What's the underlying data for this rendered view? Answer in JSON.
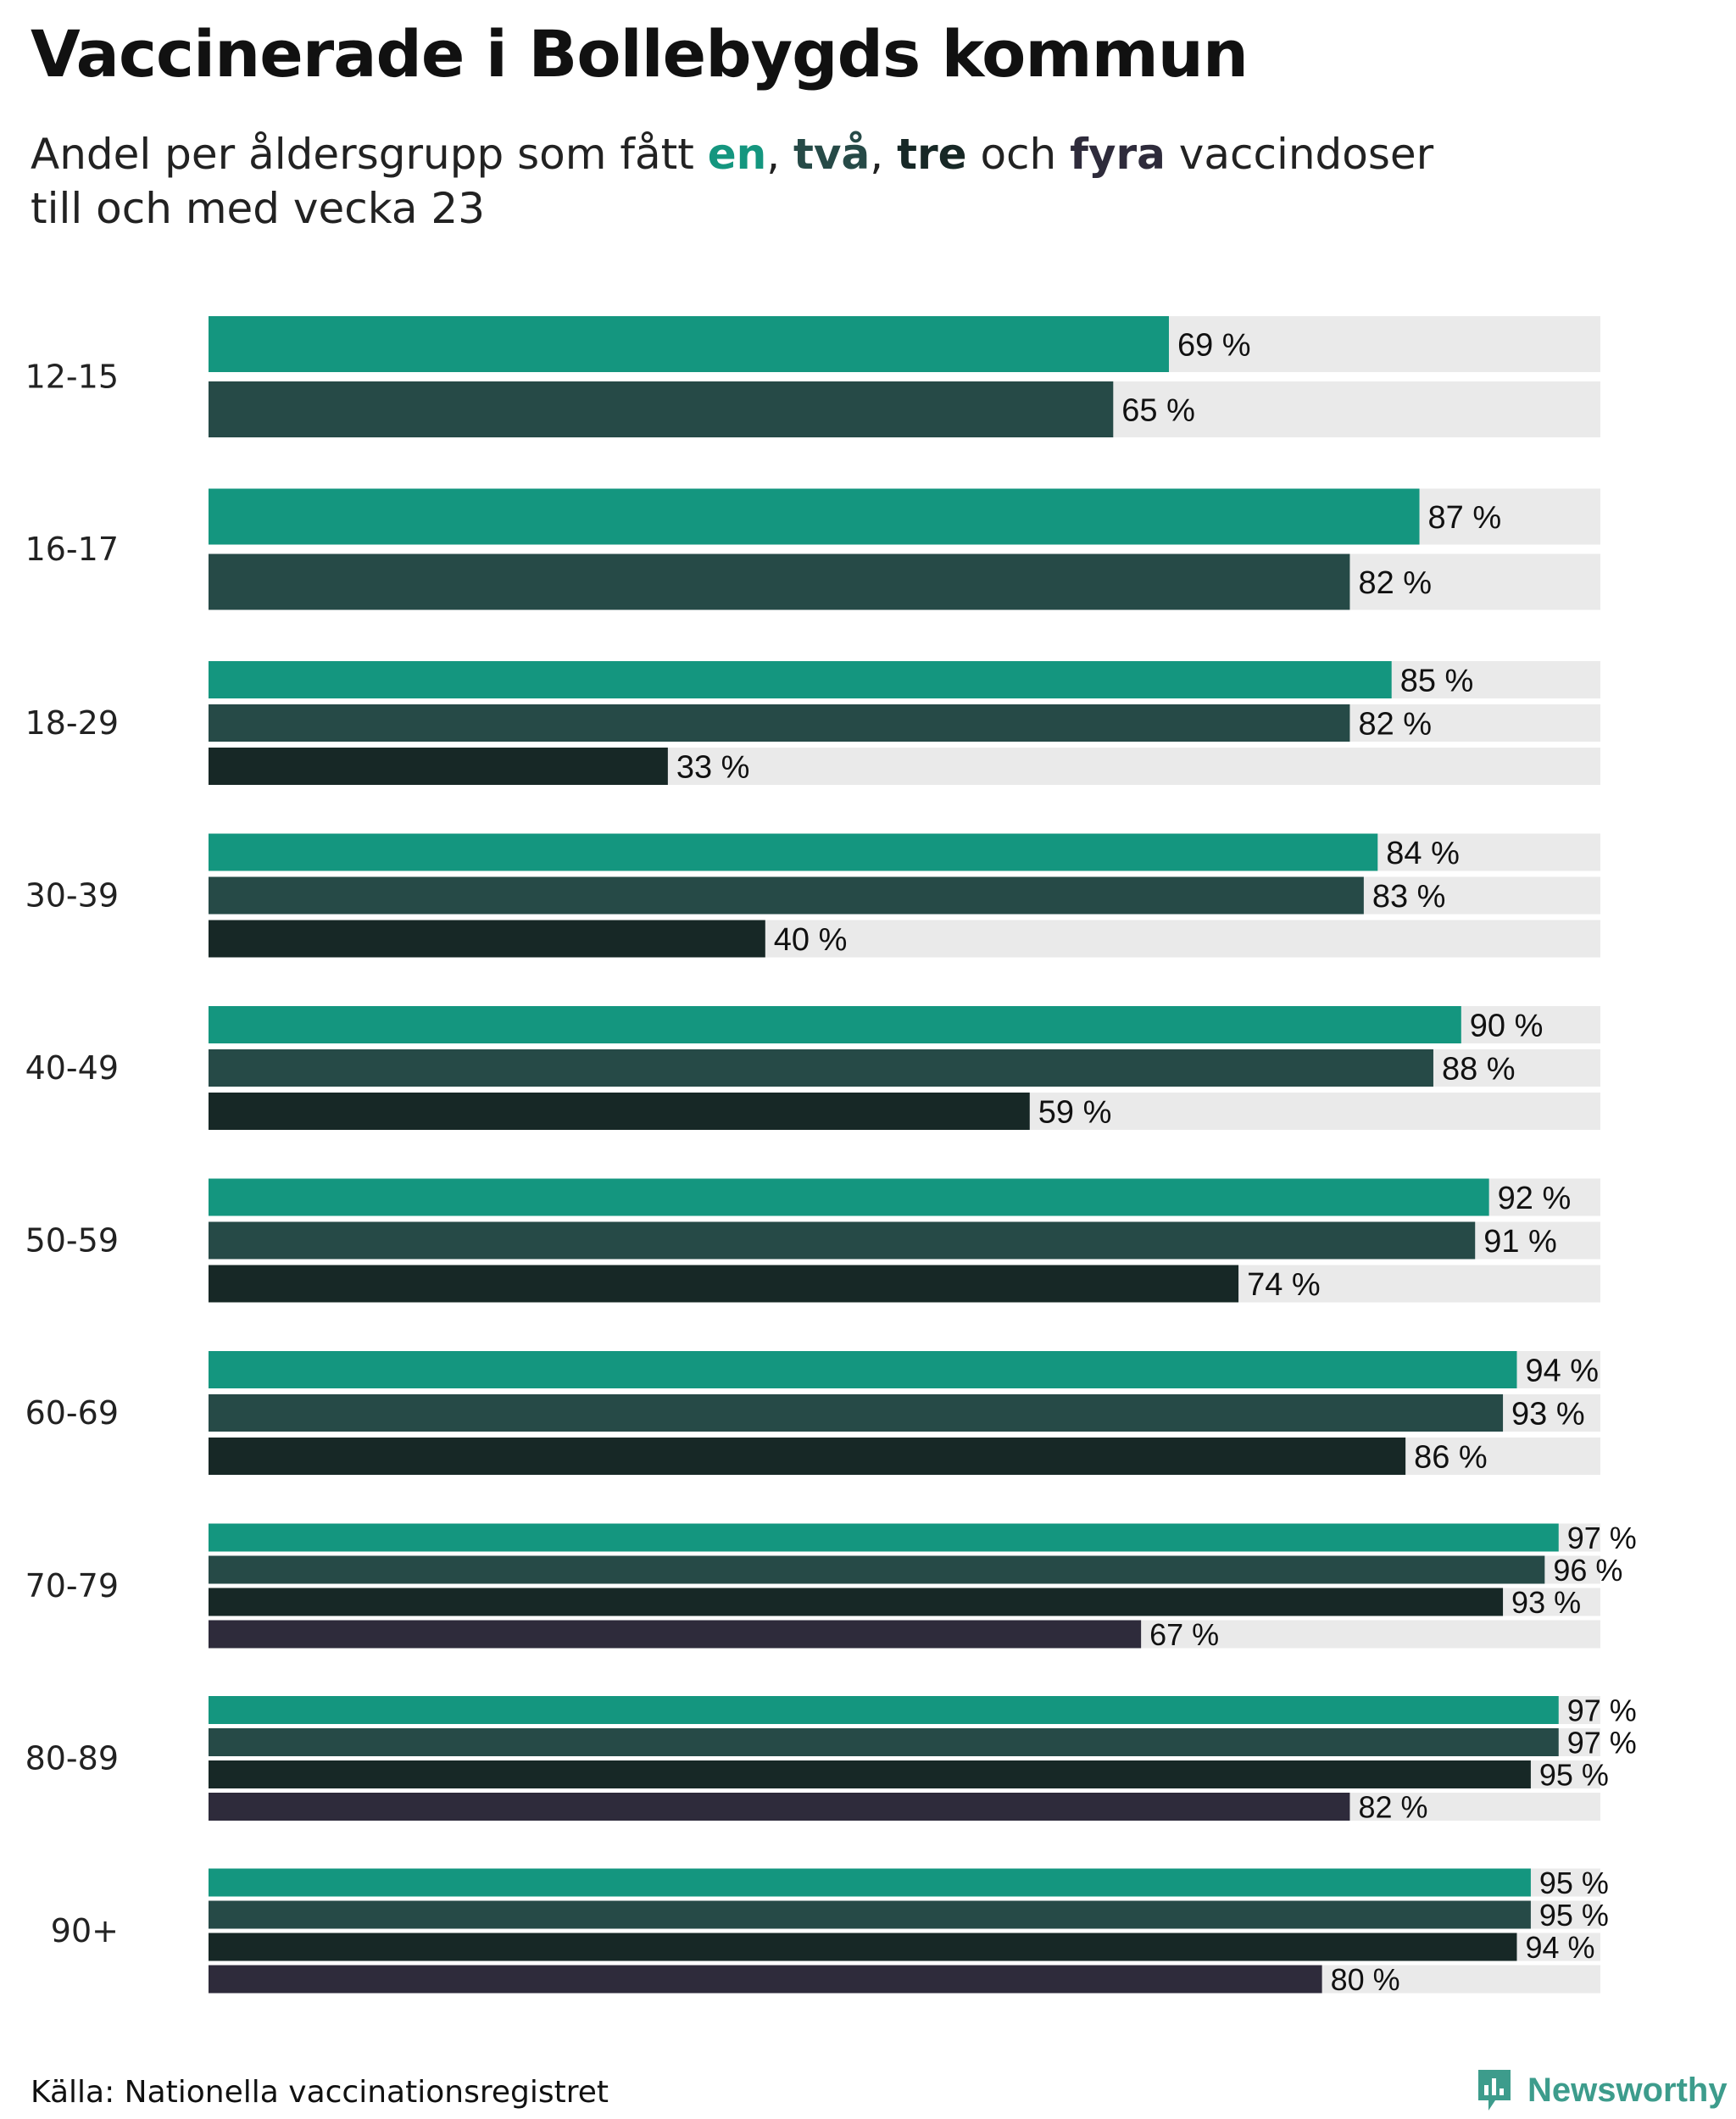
{
  "title": "Vaccinerade i Bollebygds kommun",
  "subtitle": {
    "prefix": "Andel per åldersgrupp som fått ",
    "dose_words": [
      "en",
      "två",
      "tre",
      "fyra"
    ],
    "sep1": ", ",
    "sep2": ", ",
    "sep3": " och ",
    "suffix": " vaccindoser",
    "line2": "till och med vecka 23"
  },
  "colors": {
    "dose1": "#14967f",
    "dose2": "#264a47",
    "dose3": "#172826",
    "dose4": "#2e2b3b",
    "track": "#eaeaea",
    "brand": "#3d9c8c"
  },
  "chart_data": {
    "type": "bar",
    "orientation": "horizontal",
    "title": "Vaccinerade i Bollebygds kommun",
    "subtitle": "Andel per åldersgrupp som fått en, två, tre och fyra vaccindoser till och med vecka 23",
    "xlim": [
      0,
      100
    ],
    "unit": "%",
    "label_suffix": " %",
    "series_names": [
      "en",
      "två",
      "tre",
      "fyra"
    ],
    "categories": [
      "12-15",
      "16-17",
      "18-29",
      "30-39",
      "40-49",
      "50-59",
      "60-69",
      "70-79",
      "80-89",
      "90+"
    ],
    "groups": [
      {
        "label": "12-15",
        "values": [
          69,
          65
        ]
      },
      {
        "label": "16-17",
        "values": [
          87,
          82
        ]
      },
      {
        "label": "18-29",
        "values": [
          85,
          82,
          33
        ]
      },
      {
        "label": "30-39",
        "values": [
          84,
          83,
          40
        ]
      },
      {
        "label": "40-49",
        "values": [
          90,
          88,
          59
        ]
      },
      {
        "label": "50-59",
        "values": [
          92,
          91,
          74
        ]
      },
      {
        "label": "60-69",
        "values": [
          94,
          93,
          86
        ]
      },
      {
        "label": "70-79",
        "values": [
          97,
          96,
          93,
          67
        ]
      },
      {
        "label": "80-89",
        "values": [
          97,
          97,
          95,
          82
        ]
      },
      {
        "label": "90+",
        "values": [
          95,
          95,
          94,
          80
        ]
      }
    ]
  },
  "footer": {
    "source": "Källa: Nationella vaccinationsregistret",
    "logo_text": "Newsworthy",
    "logo_icon": "newsworthy-logo-icon"
  }
}
